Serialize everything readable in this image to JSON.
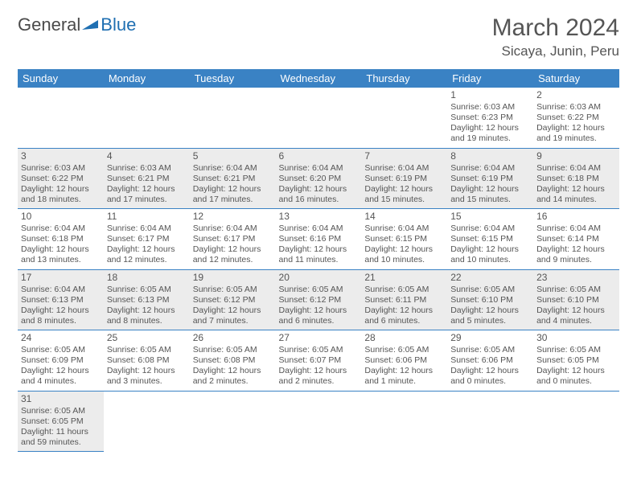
{
  "logo": {
    "text1": "General",
    "text2": "Blue"
  },
  "title": "March 2024",
  "location": "Sicaya, Junin, Peru",
  "colors": {
    "header_bg": "#3a82c4",
    "shade_bg": "#ececec",
    "rule": "#3a82c4",
    "text": "#555555"
  },
  "day_headers": [
    "Sunday",
    "Monday",
    "Tuesday",
    "Wednesday",
    "Thursday",
    "Friday",
    "Saturday"
  ],
  "weeks": [
    [
      null,
      null,
      null,
      null,
      null,
      {
        "n": "1",
        "sr": "6:03 AM",
        "ss": "6:23 PM",
        "dl": "12 hours and 19 minutes."
      },
      {
        "n": "2",
        "sr": "6:03 AM",
        "ss": "6:22 PM",
        "dl": "12 hours and 19 minutes."
      }
    ],
    [
      {
        "n": "3",
        "sr": "6:03 AM",
        "ss": "6:22 PM",
        "dl": "12 hours and 18 minutes."
      },
      {
        "n": "4",
        "sr": "6:03 AM",
        "ss": "6:21 PM",
        "dl": "12 hours and 17 minutes."
      },
      {
        "n": "5",
        "sr": "6:04 AM",
        "ss": "6:21 PM",
        "dl": "12 hours and 17 minutes."
      },
      {
        "n": "6",
        "sr": "6:04 AM",
        "ss": "6:20 PM",
        "dl": "12 hours and 16 minutes."
      },
      {
        "n": "7",
        "sr": "6:04 AM",
        "ss": "6:19 PM",
        "dl": "12 hours and 15 minutes."
      },
      {
        "n": "8",
        "sr": "6:04 AM",
        "ss": "6:19 PM",
        "dl": "12 hours and 15 minutes."
      },
      {
        "n": "9",
        "sr": "6:04 AM",
        "ss": "6:18 PM",
        "dl": "12 hours and 14 minutes."
      }
    ],
    [
      {
        "n": "10",
        "sr": "6:04 AM",
        "ss": "6:18 PM",
        "dl": "12 hours and 13 minutes."
      },
      {
        "n": "11",
        "sr": "6:04 AM",
        "ss": "6:17 PM",
        "dl": "12 hours and 12 minutes."
      },
      {
        "n": "12",
        "sr": "6:04 AM",
        "ss": "6:17 PM",
        "dl": "12 hours and 12 minutes."
      },
      {
        "n": "13",
        "sr": "6:04 AM",
        "ss": "6:16 PM",
        "dl": "12 hours and 11 minutes."
      },
      {
        "n": "14",
        "sr": "6:04 AM",
        "ss": "6:15 PM",
        "dl": "12 hours and 10 minutes."
      },
      {
        "n": "15",
        "sr": "6:04 AM",
        "ss": "6:15 PM",
        "dl": "12 hours and 10 minutes."
      },
      {
        "n": "16",
        "sr": "6:04 AM",
        "ss": "6:14 PM",
        "dl": "12 hours and 9 minutes."
      }
    ],
    [
      {
        "n": "17",
        "sr": "6:04 AM",
        "ss": "6:13 PM",
        "dl": "12 hours and 8 minutes."
      },
      {
        "n": "18",
        "sr": "6:05 AM",
        "ss": "6:13 PM",
        "dl": "12 hours and 8 minutes."
      },
      {
        "n": "19",
        "sr": "6:05 AM",
        "ss": "6:12 PM",
        "dl": "12 hours and 7 minutes."
      },
      {
        "n": "20",
        "sr": "6:05 AM",
        "ss": "6:12 PM",
        "dl": "12 hours and 6 minutes."
      },
      {
        "n": "21",
        "sr": "6:05 AM",
        "ss": "6:11 PM",
        "dl": "12 hours and 6 minutes."
      },
      {
        "n": "22",
        "sr": "6:05 AM",
        "ss": "6:10 PM",
        "dl": "12 hours and 5 minutes."
      },
      {
        "n": "23",
        "sr": "6:05 AM",
        "ss": "6:10 PM",
        "dl": "12 hours and 4 minutes."
      }
    ],
    [
      {
        "n": "24",
        "sr": "6:05 AM",
        "ss": "6:09 PM",
        "dl": "12 hours and 4 minutes."
      },
      {
        "n": "25",
        "sr": "6:05 AM",
        "ss": "6:08 PM",
        "dl": "12 hours and 3 minutes."
      },
      {
        "n": "26",
        "sr": "6:05 AM",
        "ss": "6:08 PM",
        "dl": "12 hours and 2 minutes."
      },
      {
        "n": "27",
        "sr": "6:05 AM",
        "ss": "6:07 PM",
        "dl": "12 hours and 2 minutes."
      },
      {
        "n": "28",
        "sr": "6:05 AM",
        "ss": "6:06 PM",
        "dl": "12 hours and 1 minute."
      },
      {
        "n": "29",
        "sr": "6:05 AM",
        "ss": "6:06 PM",
        "dl": "12 hours and 0 minutes."
      },
      {
        "n": "30",
        "sr": "6:05 AM",
        "ss": "6:05 PM",
        "dl": "12 hours and 0 minutes."
      }
    ],
    [
      {
        "n": "31",
        "sr": "6:05 AM",
        "ss": "6:05 PM",
        "dl": "11 hours and 59 minutes."
      },
      null,
      null,
      null,
      null,
      null,
      null
    ]
  ],
  "labels": {
    "sunrise": "Sunrise: ",
    "sunset": "Sunset: ",
    "daylight": "Daylight: "
  }
}
